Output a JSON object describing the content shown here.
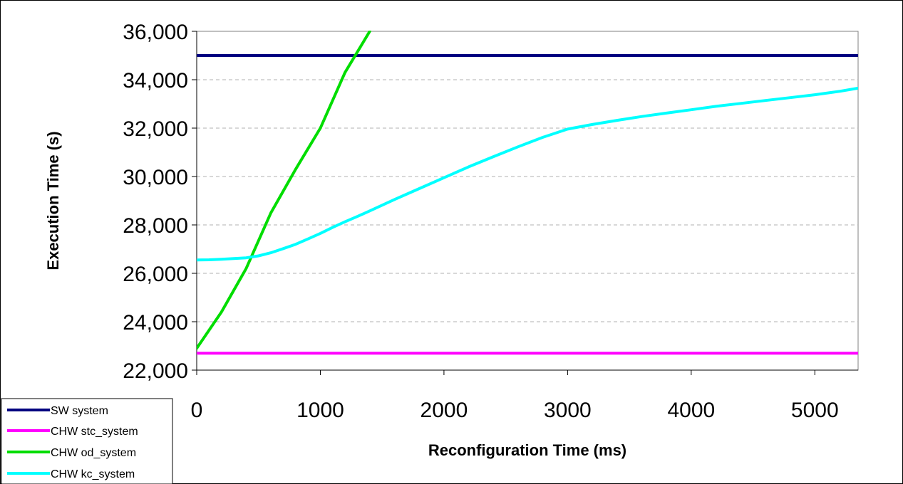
{
  "chart_data": {
    "type": "line",
    "xlabel": "Reconfiguration Time (ms)",
    "ylabel": "Execution Time (s)",
    "xlim": [
      0,
      5350
    ],
    "ylim": [
      22000,
      36000
    ],
    "x_ticks": [
      0,
      1000,
      2000,
      3000,
      4000,
      5000
    ],
    "x_tick_labels": [
      "0",
      "1000",
      "2000",
      "3000",
      "4000",
      "5000"
    ],
    "y_ticks": [
      22000,
      24000,
      26000,
      28000,
      30000,
      32000,
      34000,
      36000
    ],
    "y_tick_labels": [
      "22,000",
      "24,000",
      "26,000",
      "28,000",
      "30,000",
      "32,000",
      "34,000",
      "36,000"
    ],
    "grid": "horizontal-dashed",
    "legend_position": "bottom-left",
    "series": [
      {
        "name": "SW system",
        "color": "#000080",
        "x": [
          0,
          5350
        ],
        "y": [
          35000,
          35000
        ]
      },
      {
        "name": "CHW stc_system",
        "color": "#ff00ff",
        "x": [
          0,
          5350
        ],
        "y": [
          22700,
          22700
        ]
      },
      {
        "name": "CHW od_system",
        "color": "#00dd00",
        "x": [
          0,
          200,
          400,
          600,
          800,
          1000,
          1200,
          1400
        ],
        "y": [
          22900,
          24400,
          26200,
          28500,
          30300,
          32000,
          34300,
          36000
        ]
      },
      {
        "name": "CHW kc_system",
        "color": "#00ffff",
        "x": [
          0,
          100,
          200,
          300,
          400,
          500,
          600,
          700,
          800,
          900,
          1000,
          1100,
          1200,
          1300,
          1400,
          1600,
          1800,
          2000,
          2200,
          2400,
          2600,
          2800,
          3000,
          3200,
          3400,
          3600,
          3800,
          4000,
          4200,
          4400,
          4600,
          4800,
          5000,
          5200,
          5350
        ],
        "y": [
          26550,
          26560,
          26580,
          26610,
          26640,
          26720,
          26850,
          27020,
          27200,
          27420,
          27650,
          27900,
          28130,
          28350,
          28580,
          29050,
          29500,
          29950,
          30400,
          30820,
          31230,
          31620,
          31960,
          32150,
          32320,
          32480,
          32620,
          32760,
          32900,
          33020,
          33140,
          33260,
          33380,
          33520,
          33650
        ]
      }
    ]
  }
}
